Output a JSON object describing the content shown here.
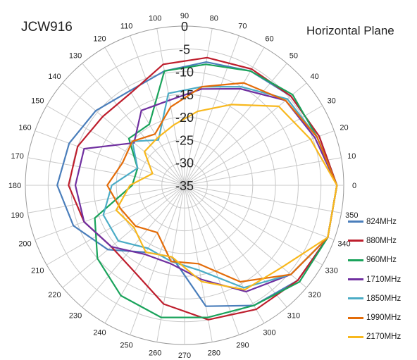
{
  "chart_data": {
    "type": "polar_line",
    "title": "JCW916",
    "subtitle": "Horizontal Plane",
    "r_range": [
      -35,
      0
    ],
    "r_ticks": [
      0,
      -5,
      -10,
      -15,
      -20,
      -25,
      -30,
      -35
    ],
    "angle_ticks": [
      0,
      10,
      20,
      30,
      40,
      50,
      60,
      70,
      80,
      90,
      100,
      110,
      120,
      130,
      140,
      150,
      160,
      170,
      180,
      190,
      200,
      210,
      220,
      230,
      240,
      250,
      260,
      270,
      280,
      290,
      300,
      310,
      320,
      330,
      340,
      350
    ],
    "angle_direction": "counterclockwise",
    "zero_angle": "right",
    "grid": true,
    "legend_position": "right-bottom",
    "angles": [
      0,
      20,
      40,
      60,
      80,
      100,
      120,
      140,
      160,
      180,
      200,
      220,
      240,
      260,
      280,
      300,
      320,
      340
    ],
    "series": [
      {
        "name": "824MHz",
        "color": "#4a7ebb",
        "values": [
          -1.5,
          -3.5,
          -4.5,
          -6.0,
          -7.5,
          -9.5,
          -11.0,
          -9.5,
          -8.0,
          -7.0,
          -9.0,
          -13.0,
          -18.0,
          -19.0,
          -8.0,
          -4.5,
          -2.5,
          -1.5
        ]
      },
      {
        "name": "880MHz",
        "color": "#be1e2d",
        "values": [
          -1.5,
          -3.5,
          -4.5,
          -5.5,
          -6.5,
          -8.0,
          -11.5,
          -11.5,
          -10.0,
          -9.5,
          -11.5,
          -14.0,
          -13.0,
          -8.5,
          -5.0,
          -3.5,
          -2.5,
          -1.5
        ]
      },
      {
        "name": "960MHz",
        "color": "#1aa35b",
        "values": [
          -1.5,
          -4.0,
          -4.0,
          -6.0,
          -8.0,
          -9.5,
          -19.5,
          -19.0,
          -24.0,
          -23.5,
          -14.0,
          -10.0,
          -7.0,
          -5.5,
          -5.5,
          -4.5,
          -2.0,
          -1.5
        ]
      },
      {
        "name": "1710MHz",
        "color": "#7030a0",
        "values": [
          -1.5,
          -4.5,
          -6.0,
          -10.5,
          -13.5,
          -16.0,
          -16.0,
          -20.5,
          -11.5,
          -11.0,
          -11.5,
          -14.0,
          -17.5,
          -17.5,
          -14.0,
          -8.0,
          -4.5,
          -1.5
        ]
      },
      {
        "name": "1850MHz",
        "color": "#4bacc6",
        "values": [
          -1.5,
          -4.0,
          -5.5,
          -10.0,
          -13.0,
          -14.5,
          -23.5,
          -20.0,
          -24.0,
          -19.0,
          -16.0,
          -16.0,
          -19.0,
          -18.0,
          -16.0,
          -9.0,
          -4.5,
          -1.5
        ]
      },
      {
        "name": "1990MHz",
        "color": "#e36c09",
        "values": [
          -1.5,
          -4.0,
          -6.0,
          -9.0,
          -13.0,
          -17.5,
          -22.0,
          -20.0,
          -20.5,
          -18.0,
          -20.0,
          -21.0,
          -23.0,
          -18.0,
          -17.5,
          -10.5,
          -4.5,
          -1.5
        ]
      },
      {
        "name": "2170MHz",
        "color": "#f8b81d",
        "values": [
          -1.5,
          -5.5,
          -8.0,
          -14.5,
          -18.5,
          -21.5,
          -23.0,
          -23.5,
          -27.5,
          -23.0,
          -19.0,
          -20.5,
          -18.0,
          -19.0,
          -13.5,
          -8.5,
          -7.0,
          -1.5
        ]
      }
    ]
  }
}
